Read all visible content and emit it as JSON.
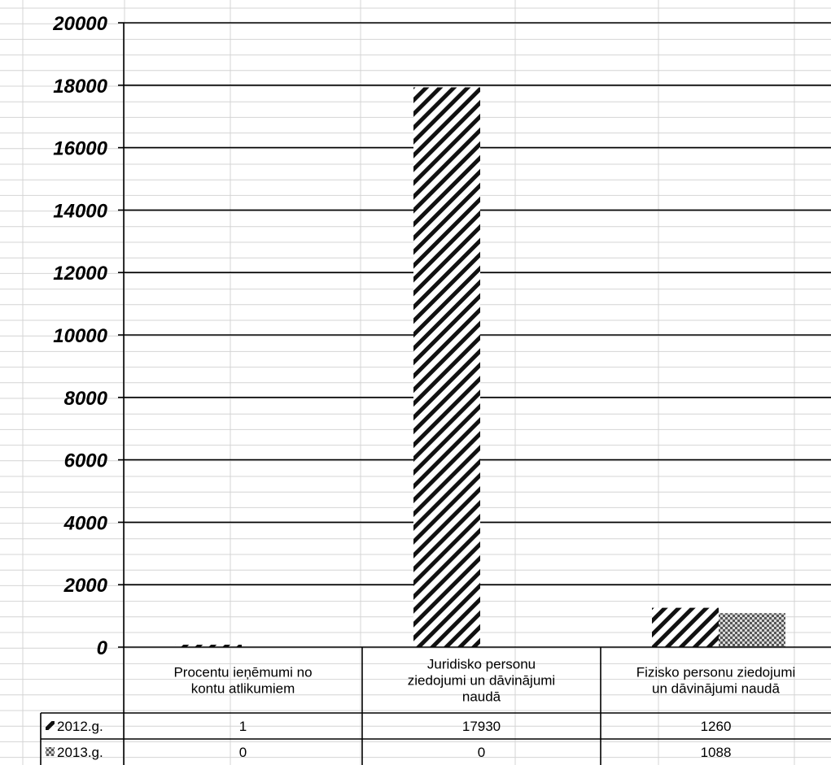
{
  "chart_data": {
    "type": "bar",
    "categories": [
      [
        "Procentu ieņēmumi no",
        "kontu atlikumiem"
      ],
      [
        "Juridisko personu",
        "ziedojumi un dāvinājumi",
        "naudā"
      ],
      [
        "Fizisko personu ziedojumi",
        "un dāvinājumi naudā"
      ]
    ],
    "series": [
      {
        "name": "2012.g.",
        "values": [
          1,
          17930,
          1260
        ],
        "pattern": "diagonal-hatch"
      },
      {
        "name": "2013.g.",
        "values": [
          0,
          0,
          1088
        ],
        "pattern": "checker"
      }
    ],
    "ylim": [
      0,
      20000
    ],
    "yticks": [
      "0",
      "2000",
      "4000",
      "6000",
      "8000",
      "10000",
      "12000",
      "14000",
      "16000",
      "18000",
      "20000"
    ],
    "grid": true,
    "legend": "data-table",
    "data_table": {
      "rows": [
        {
          "key": "2012.g.",
          "cells": [
            "1",
            "17930",
            "1260"
          ]
        },
        {
          "key": "2013.g.",
          "cells": [
            "0",
            "0",
            "1088"
          ]
        }
      ]
    }
  }
}
